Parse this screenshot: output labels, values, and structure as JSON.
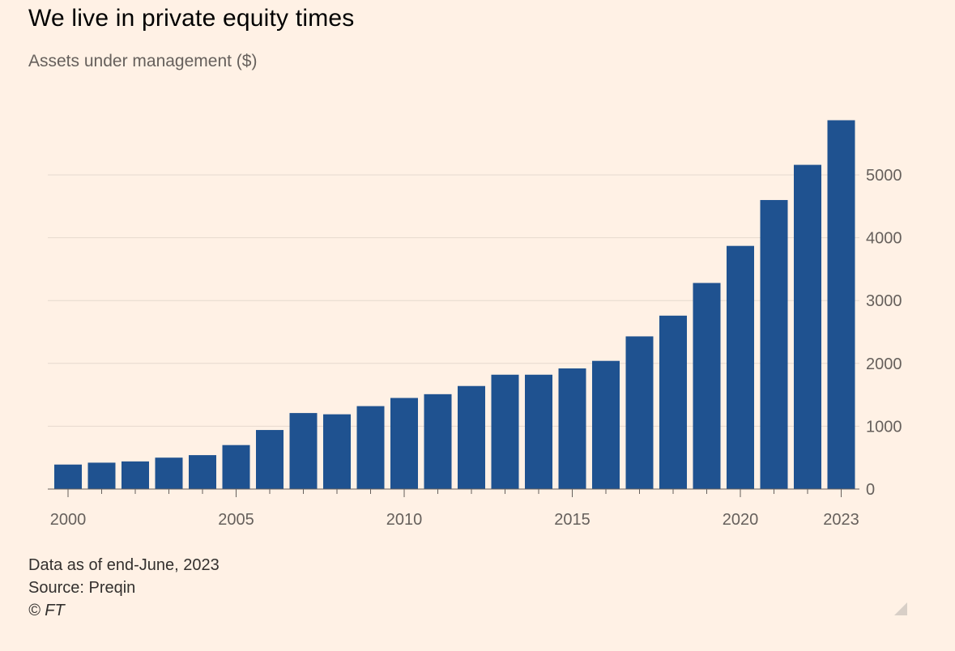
{
  "title": "We live in private equity times",
  "subtitle": "Assets under management ($)",
  "notes": {
    "line1": "Data as of end-June, 2023",
    "line2": "Source: Preqin",
    "line3": "© FT"
  },
  "colors": {
    "background": "#fff1e5",
    "bar": "#1f5290",
    "grid": "#e6d9ce",
    "axis": "#66605c"
  },
  "chart_data": {
    "type": "bar",
    "title": "We live in private equity times",
    "subtitle": "Assets under management ($)",
    "categories": [
      "2000",
      "2001",
      "2002",
      "2003",
      "2004",
      "2005",
      "2006",
      "2007",
      "2008",
      "2009",
      "2010",
      "2011",
      "2012",
      "2013",
      "2014",
      "2015",
      "2016",
      "2017",
      "2018",
      "2019",
      "2020",
      "2021",
      "2022",
      "2023"
    ],
    "values": [
      390,
      420,
      440,
      500,
      540,
      700,
      940,
      1210,
      1190,
      1320,
      1450,
      1510,
      1640,
      1820,
      1820,
      1920,
      2040,
      2430,
      2760,
      3280,
      3870,
      4600,
      5160,
      5870
    ],
    "x_tick_labels": [
      "2000",
      "2005",
      "2010",
      "2015",
      "2020",
      "2023"
    ],
    "y_ticks": [
      0,
      1000,
      2000,
      3000,
      4000,
      5000
    ],
    "ylim": [
      0,
      6000
    ],
    "y_axis_side": "right",
    "grid": true,
    "xlabel": "",
    "ylabel": ""
  }
}
